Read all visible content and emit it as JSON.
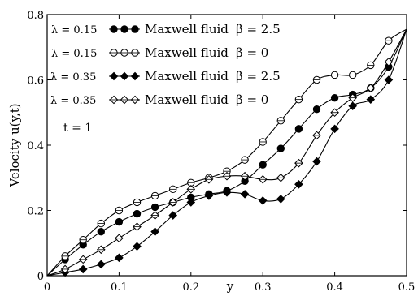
{
  "chart_data": {
    "type": "line",
    "title": "",
    "xlabel": "y",
    "ylabel": "Velocity u(y,t)",
    "xlim": [
      0,
      0.5
    ],
    "ylim": [
      0,
      0.8
    ],
    "x_ticks": [
      "0",
      "0.1",
      "0.2",
      "0.3",
      "0.4",
      "0.5"
    ],
    "y_ticks": [
      "0",
      "0.2",
      "0.4",
      "0.6",
      "0.8"
    ],
    "grid": false,
    "legend_position": "top-left",
    "annotation": "t = 1",
    "series": [
      {
        "name": "Maxwell fluid",
        "lambda_label": "λ = 0.15",
        "beta_label": "β = 2.5",
        "marker": "filled-circle",
        "x": [
          0,
          0.025,
          0.05,
          0.075,
          0.1,
          0.125,
          0.15,
          0.175,
          0.2,
          0.225,
          0.25,
          0.275,
          0.3,
          0.325,
          0.35,
          0.375,
          0.4,
          0.425,
          0.45,
          0.475,
          0.5
        ],
        "y": [
          0,
          0.05,
          0.095,
          0.135,
          0.165,
          0.19,
          0.21,
          0.225,
          0.24,
          0.25,
          0.26,
          0.29,
          0.34,
          0.39,
          0.45,
          0.51,
          0.545,
          0.555,
          0.575,
          0.64,
          0.755
        ]
      },
      {
        "name": "Maxwell fluid",
        "lambda_label": "λ = 0.15",
        "beta_label": "β = 0",
        "marker": "open-circle",
        "x": [
          0,
          0.025,
          0.05,
          0.075,
          0.1,
          0.125,
          0.15,
          0.175,
          0.2,
          0.225,
          0.25,
          0.275,
          0.3,
          0.325,
          0.35,
          0.375,
          0.4,
          0.425,
          0.45,
          0.475,
          0.5
        ],
        "y": [
          0,
          0.06,
          0.11,
          0.16,
          0.2,
          0.225,
          0.245,
          0.265,
          0.285,
          0.3,
          0.32,
          0.355,
          0.41,
          0.475,
          0.54,
          0.6,
          0.615,
          0.615,
          0.645,
          0.72,
          0.755
        ]
      },
      {
        "name": "Maxwell fluid",
        "lambda_label": "λ = 0.35",
        "beta_label": "β = 2.5",
        "marker": "filled-diamond",
        "x": [
          0,
          0.025,
          0.05,
          0.075,
          0.1,
          0.125,
          0.15,
          0.175,
          0.2,
          0.225,
          0.25,
          0.275,
          0.3,
          0.325,
          0.35,
          0.375,
          0.4,
          0.425,
          0.45,
          0.475,
          0.5
        ],
        "y": [
          0,
          0.01,
          0.02,
          0.035,
          0.055,
          0.09,
          0.135,
          0.185,
          0.225,
          0.245,
          0.255,
          0.25,
          0.23,
          0.235,
          0.28,
          0.35,
          0.45,
          0.52,
          0.54,
          0.6,
          0.755
        ]
      },
      {
        "name": "Maxwell fluid",
        "lambda_label": "λ = 0.35",
        "beta_label": "β = 0",
        "marker": "open-diamond",
        "x": [
          0,
          0.025,
          0.05,
          0.075,
          0.1,
          0.125,
          0.15,
          0.175,
          0.2,
          0.225,
          0.25,
          0.275,
          0.3,
          0.325,
          0.35,
          0.375,
          0.4,
          0.425,
          0.45,
          0.475,
          0.5
        ],
        "y": [
          0,
          0.02,
          0.05,
          0.08,
          0.115,
          0.15,
          0.185,
          0.225,
          0.265,
          0.295,
          0.305,
          0.305,
          0.295,
          0.3,
          0.345,
          0.43,
          0.5,
          0.545,
          0.575,
          0.655,
          0.755
        ]
      }
    ]
  }
}
